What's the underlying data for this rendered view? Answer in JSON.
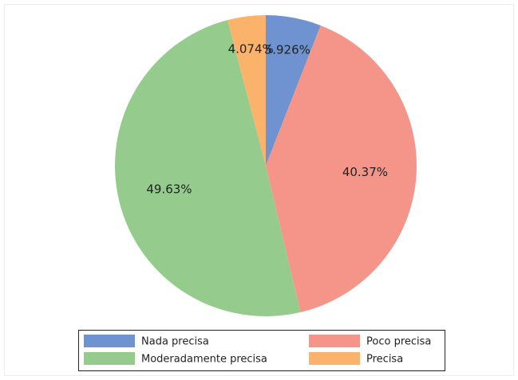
{
  "chart_data": {
    "type": "pie",
    "categories": [
      "Nada precisa",
      "Poco precisa",
      "Moderadamente precisa",
      "Precisa"
    ],
    "values": [
      5.926,
      40.37,
      49.63,
      4.074
    ],
    "value_labels": [
      "5.926%",
      "40.37%",
      "49.63%",
      "4.074%"
    ],
    "colors": [
      "#6f93d0",
      "#f5958a",
      "#95cc8e",
      "#fbb36b"
    ],
    "legend": "bottom"
  }
}
